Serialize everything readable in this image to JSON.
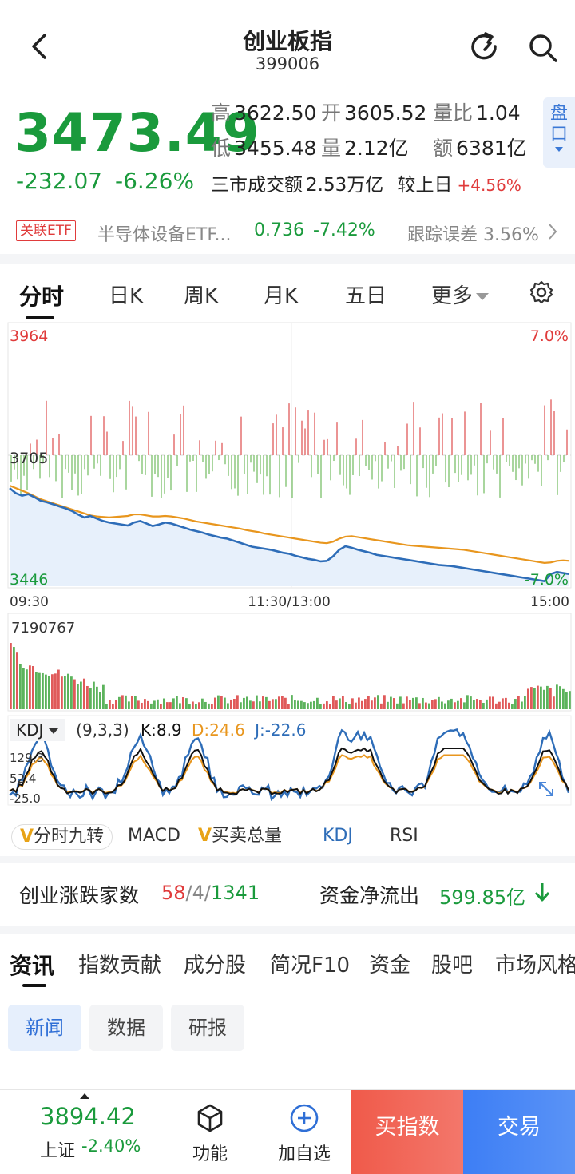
{
  "header": {
    "title": "创业板指",
    "code": "399006",
    "back_icon": "chevron-left-icon",
    "refresh_icon": "refresh-icon",
    "search_icon": "search-icon"
  },
  "quote": {
    "price": "3473.49",
    "change": "-232.07",
    "change_pct": "-6.26%",
    "stats": [
      {
        "label": "高",
        "value": "3622.50"
      },
      {
        "label": "开",
        "value": "3605.52"
      },
      {
        "label": "量比",
        "value": "1.04"
      },
      {
        "label": "低",
        "value": "3455.48"
      },
      {
        "label": "量",
        "value": "2.12亿"
      },
      {
        "label": "额",
        "value": "6381亿"
      }
    ],
    "turnover_label": "三市成交额",
    "turnover_value": "2.53万亿",
    "vs_prev_label": "较上日",
    "vs_prev_value": "+4.56%",
    "pankou_label": "盘口",
    "colors": {
      "down": "#1a9a3c",
      "up": "#e03b3b"
    }
  },
  "etf": {
    "tag": "关联ETF",
    "name": "半导体设备ETF...",
    "price": "0.736",
    "pct": "-7.42%",
    "tracking_label": "跟踪误差",
    "tracking_value": "3.56%"
  },
  "chart_tabs": [
    "分时",
    "日K",
    "周K",
    "月K",
    "五日",
    "更多"
  ],
  "chart_settings_icon": "gear-icon",
  "chart_data": {
    "type": "line",
    "labels": {
      "price_high": "3964",
      "price_mid": "3705",
      "price_low": "3446",
      "pct_high": "7.0%",
      "pct_low": "-7.0%",
      "time_start": "09:30",
      "time_mid": "11:30/13:00",
      "time_end": "15:00",
      "vol_max": "7190767"
    },
    "ylim": [
      3446,
      3964
    ],
    "prev_close": 3705,
    "series": [
      {
        "values": [
          3640,
          3630,
          3625,
          3628,
          3622,
          3615,
          3612,
          3608,
          3604,
          3600,
          3595,
          3588,
          3582,
          3585,
          3580,
          3575,
          3572,
          3570,
          3568,
          3566,
          3572,
          3575,
          3570,
          3565,
          3568,
          3572,
          3570,
          3566,
          3562,
          3558,
          3555,
          3552,
          3548,
          3545,
          3542,
          3540,
          3536,
          3532,
          3528,
          3524,
          3522,
          3520,
          3518,
          3515,
          3512,
          3510,
          3506,
          3503,
          3500,
          3498,
          3495,
          3496,
          3505,
          3518,
          3525,
          3522,
          3518,
          3515,
          3512,
          3508,
          3506,
          3504,
          3502,
          3500,
          3498,
          3496,
          3494,
          3492,
          3490,
          3488,
          3487,
          3486,
          3484,
          3482,
          3480,
          3478,
          3476,
          3474,
          3472,
          3470,
          3468,
          3466,
          3464,
          3462,
          3460,
          3458,
          3456,
          3470,
          3474,
          3472,
          3470
        ]
      },
      {
        "values": [
          3645,
          3640,
          3635,
          3630,
          3624,
          3618,
          3614,
          3610,
          3606,
          3602,
          3598,
          3594,
          3590,
          3586,
          3584,
          3583,
          3582,
          3583,
          3584,
          3585,
          3588,
          3588,
          3586,
          3584,
          3584,
          3585,
          3584,
          3582,
          3580,
          3577,
          3574,
          3572,
          3570,
          3568,
          3566,
          3564,
          3562,
          3560,
          3557,
          3555,
          3553,
          3550,
          3548,
          3546,
          3544,
          3542,
          3540,
          3538,
          3536,
          3534,
          3532,
          3531,
          3534,
          3540,
          3544,
          3545,
          3543,
          3541,
          3539,
          3537,
          3535,
          3533,
          3531,
          3529,
          3527,
          3526,
          3525,
          3524,
          3523,
          3522,
          3521,
          3520,
          3519,
          3518,
          3516,
          3514,
          3512,
          3510,
          3508,
          3506,
          3504,
          3502,
          3500,
          3498,
          3496,
          3494,
          3492,
          3493,
          3496,
          3497,
          3496
        ]
      }
    ]
  },
  "kdj": {
    "name": "KDJ",
    "params": "(9,3,3)",
    "k": "K:8.9",
    "d": "D:24.6",
    "j": "J:-22.6",
    "axis_labels": [
      "129.3",
      "52.4",
      "-25.0"
    ]
  },
  "indicator_tabs": [
    "分时九转",
    "MACD",
    "买卖总量",
    "KDJ",
    "RSI"
  ],
  "breadth": {
    "label": "创业涨跌家数",
    "up": "58",
    "flat": "4",
    "down": "1341",
    "flow_label": "资金净流出",
    "flow_value": "599.85亿"
  },
  "info_tabs": [
    "资讯",
    "指数贡献",
    "成分股",
    "简况F10",
    "资金",
    "股吧",
    "市场风格"
  ],
  "sub_tabs": [
    "新闻",
    "数据",
    "研报"
  ],
  "bottom": {
    "index_price": "3894.42",
    "index_name": "上证",
    "index_pct": "-2.40%",
    "func_label": "功能",
    "add_label": "加自选",
    "buy_label": "买指数",
    "trade_label": "交易"
  }
}
